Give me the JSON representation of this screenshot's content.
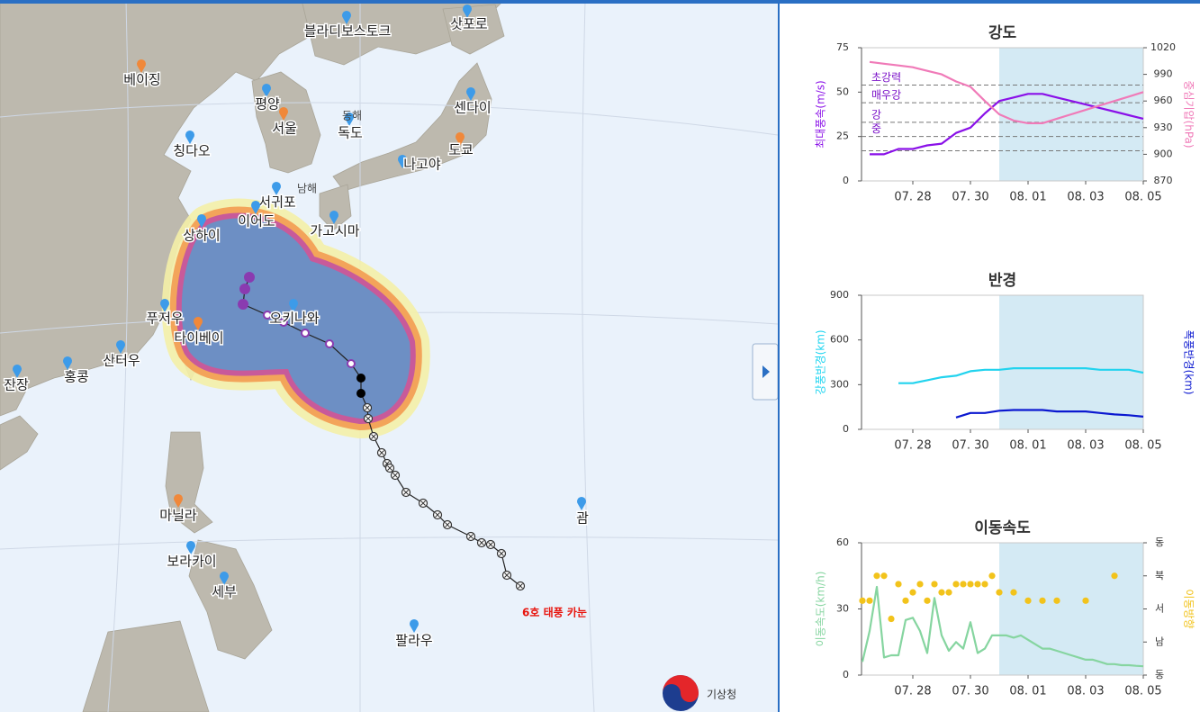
{
  "map": {
    "cities": [
      {
        "label": "블라디보스토크",
        "color": "#3d9be9"
      },
      {
        "label": "삿포로",
        "color": "#3d9be9"
      },
      {
        "label": "베이징",
        "color": "#f0883a"
      },
      {
        "label": "평양",
        "color": "#3d9be9"
      },
      {
        "label": "서울",
        "color": "#f0883a"
      },
      {
        "label": "독도",
        "color": "#3d9be9"
      },
      {
        "label": "센다이",
        "color": "#3d9be9"
      },
      {
        "label": "칭다오",
        "color": "#3d9be9"
      },
      {
        "label": "도쿄",
        "color": "#f0883a"
      },
      {
        "label": "나고야",
        "color": "#3d9be9"
      },
      {
        "label": "서귀포",
        "color": "#3d9be9"
      },
      {
        "label": "이어도",
        "color": "#3d9be9"
      },
      {
        "label": "상하이",
        "color": "#3d9be9"
      },
      {
        "label": "가고시마",
        "color": "#3d9be9"
      },
      {
        "label": "푸저우",
        "color": "#3d9be9"
      },
      {
        "label": "오키나와",
        "color": "#3d9be9"
      },
      {
        "label": "타이베이",
        "color": "#f0883a"
      },
      {
        "label": "홍콩",
        "color": "#3d9be9"
      },
      {
        "label": "산터우",
        "color": "#3d9be9"
      },
      {
        "label": "잔장",
        "color": "#3d9be9"
      },
      {
        "label": "마닐라",
        "color": "#f0883a"
      },
      {
        "label": "괌",
        "color": "#3d9be9"
      },
      {
        "label": "보라카이",
        "color": "#3d9be9"
      },
      {
        "label": "세부",
        "color": "#3d9be9"
      },
      {
        "label": "팔라우",
        "color": "#3d9be9"
      }
    ],
    "sea_labels": [
      "동해",
      "남해"
    ],
    "typhoon_name": "6호 태풍 카눈",
    "agency": "기상청"
  },
  "chart_data": [
    {
      "type": "line",
      "title": "강도",
      "ylabel": "최대풍속(m/s)",
      "y2label": "중심기압(hPa)",
      "categories": [
        null,
        null,
        null,
        "07. 28",
        null,
        null,
        null,
        "07. 30",
        null,
        null,
        null,
        "08. 01",
        null,
        null,
        null,
        "08. 03",
        null,
        null,
        null,
        "08. 05"
      ],
      "ylim": [
        0,
        75
      ],
      "yticks": [
        0,
        25,
        50,
        75
      ],
      "y2lim": [
        870,
        1020
      ],
      "y2ticks": [
        870,
        900,
        930,
        960,
        990,
        1020
      ],
      "forecast_from": 9,
      "reference_lines": [
        54,
        44,
        33,
        25,
        17
      ],
      "reference_labels": [
        "초강력",
        "매우강",
        "강",
        "중"
      ],
      "ylabel_color": "#8a10e8",
      "y2label_color": "#f07ab8",
      "series": [
        {
          "color": "#8a10e8",
          "values": [
            15,
            15,
            18,
            18,
            20,
            21,
            27,
            30,
            38,
            45,
            47,
            49,
            49,
            47,
            45,
            43,
            41,
            39,
            37,
            35
          ]
        },
        {
          "color": "#f07ab8",
          "axis": "y2",
          "values": [
            1004,
            1002,
            1000,
            998,
            994,
            990,
            982,
            976,
            960,
            945,
            938,
            935,
            935,
            940,
            945,
            950,
            955,
            960,
            965,
            970
          ]
        }
      ]
    },
    {
      "type": "line",
      "title": "반경",
      "ylabel": "강풍반경(km)",
      "y2label": "폭풍반경(km)",
      "categories": [
        null,
        null,
        null,
        "07. 28",
        null,
        null,
        null,
        "07. 30",
        null,
        null,
        null,
        "08. 01",
        null,
        null,
        null,
        "08. 03",
        null,
        null,
        null,
        "08. 05"
      ],
      "ylim": [
        0,
        900
      ],
      "yticks": [
        0,
        300,
        600,
        900
      ],
      "forecast_from": 9,
      "ylabel_color": "#1cd4f0",
      "y2label_color": "#0b18d0",
      "series": [
        {
          "color": "#22d3ee",
          "values": [
            null,
            null,
            310,
            310,
            330,
            350,
            360,
            390,
            400,
            400,
            410,
            410,
            410,
            410,
            410,
            410,
            400,
            400,
            400,
            380
          ]
        },
        {
          "color": "#0b18d0",
          "values": [
            null,
            null,
            null,
            null,
            null,
            null,
            80,
            110,
            110,
            125,
            130,
            130,
            130,
            120,
            120,
            120,
            110,
            100,
            95,
            85
          ]
        }
      ]
    },
    {
      "type": "line",
      "title": "이동속도",
      "ylabel": "이동속도(km/h)",
      "y2label": "이동방향",
      "categories": [
        null,
        null,
        null,
        null,
        null,
        null,
        null,
        "07. 28",
        null,
        null,
        null,
        null,
        null,
        null,
        null,
        "07. 30",
        null,
        null,
        null,
        null,
        null,
        null,
        null,
        "08. 01",
        null,
        null,
        null,
        null,
        null,
        null,
        null,
        "08. 03",
        null,
        null,
        null,
        null,
        null,
        null,
        null,
        "08. 05"
      ],
      "ylim": [
        0,
        60
      ],
      "yticks": [
        0,
        30,
        60
      ],
      "y2lim": [
        0,
        4
      ],
      "y2ticks": [
        {
          "value": 0,
          "label": "동"
        },
        {
          "value": 1,
          "label": "남"
        },
        {
          "value": 2,
          "label": "서"
        },
        {
          "value": 3,
          "label": "북"
        },
        {
          "value": 4,
          "label": "동"
        }
      ],
      "forecast_from": 19,
      "ylabel_color": "#86d5a0",
      "y2label_color": "#f2c31b",
      "series": [
        {
          "color": "#86d5a0",
          "values": [
            6,
            20,
            40,
            8,
            9,
            9,
            25,
            26,
            20,
            10,
            35,
            18,
            11,
            15,
            12,
            24,
            10,
            12,
            18,
            18,
            18,
            17,
            18,
            16,
            14,
            12,
            12,
            11,
            10,
            9,
            8,
            7,
            7,
            6,
            5,
            5,
            4.5,
            4.5,
            4.2,
            4
          ]
        },
        {
          "color": "#f2c31b",
          "axis": "y2",
          "type": "scatter",
          "values": [
            2.25,
            2.25,
            3,
            3,
            1.7,
            2.75,
            2.25,
            2.5,
            2.75,
            2.25,
            2.75,
            2.5,
            2.5,
            2.75,
            2.75,
            2.75,
            2.75,
            2.75,
            3,
            2.5,
            null,
            2.5,
            null,
            2.25,
            null,
            2.25,
            null,
            2.25,
            null,
            null,
            null,
            2.25,
            null,
            null,
            null,
            3,
            null,
            null,
            null,
            null
          ]
        }
      ]
    }
  ]
}
